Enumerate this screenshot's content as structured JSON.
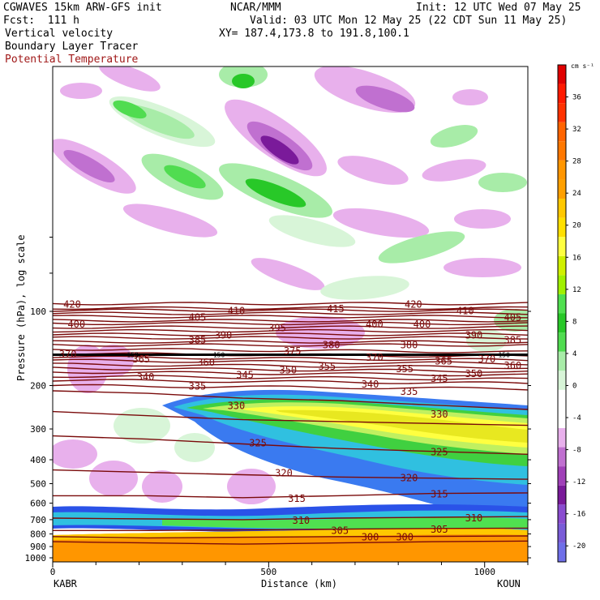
{
  "header": {
    "model": "CGWAVES 15km ARW-GFS init",
    "fcst": "Fcst:  111 h",
    "source": "NCAR/MMM",
    "init": "Init: 12 UTC Wed 07 May 25",
    "valid": "Valid: 03 UTC Mon 12 May 25 (22 CDT Sun 11 May 25)",
    "xy": "XY= 187.4,173.8 to 191.8,100.1",
    "field1": "Vertical velocity",
    "field2": "Boundary Layer Tracer",
    "field3": "Potential Temperature"
  },
  "colors": {
    "theta_contour": "#7a0a0a",
    "shading": [
      "#6f6fe8",
      "#8a4cd0",
      "#7a1a9a",
      "#a040b8",
      "#c070d0",
      "#e8b0ec",
      "#ffffff",
      "#d8f5d8",
      "#a8eca8",
      "#50dc50",
      "#28c828",
      "#50e050",
      "#d0f000",
      "#ffff40",
      "#ffc800",
      "#ff9600",
      "#ff6400",
      "#ff3200",
      "#e00000"
    ]
  },
  "chart_data": {
    "type": "heatmap",
    "title": "",
    "xlabel": "Distance (km)",
    "ylabel": "Pressure (hPa), log scale",
    "x_endpoints": {
      "left": "KABR",
      "right": "KOUN"
    },
    "x_ticks": [
      0,
      500,
      1000
    ],
    "xlim": [
      0,
      1100
    ],
    "y_ticks": [
      100,
      200,
      300,
      400,
      500,
      600,
      700,
      800,
      900,
      1000
    ],
    "y_scale": "log",
    "colorbar": {
      "unit": "cm s⁻¹",
      "tick_labels": [
        "36",
        "32",
        "28",
        "24",
        "20",
        "16",
        "12",
        "8",
        "4",
        "0",
        "-4",
        "-8",
        "-12",
        "-16",
        "-20"
      ],
      "min": -22,
      "max": 40
    },
    "theta_labels": [
      {
        "text": "420",
        "x": 45,
        "p": 93
      },
      {
        "text": "420",
        "x": 835,
        "p": 93
      },
      {
        "text": "415",
        "x": 655,
        "p": 97
      },
      {
        "text": "410",
        "x": 425,
        "p": 99
      },
      {
        "text": "410",
        "x": 955,
        "p": 99
      },
      {
        "text": "405",
        "x": 335,
        "p": 105
      },
      {
        "text": "405",
        "x": 1065,
        "p": 105
      },
      {
        "text": "400",
        "x": 55,
        "p": 112
      },
      {
        "text": "400",
        "x": 745,
        "p": 112
      },
      {
        "text": "400",
        "x": 855,
        "p": 112
      },
      {
        "text": "395",
        "x": 520,
        "p": 116
      },
      {
        "text": "390",
        "x": 395,
        "p": 124
      },
      {
        "text": "390",
        "x": 975,
        "p": 124
      },
      {
        "text": "385",
        "x": 335,
        "p": 130
      },
      {
        "text": "385",
        "x": 1065,
        "p": 130
      },
      {
        "text": "380",
        "x": 645,
        "p": 136
      },
      {
        "text": "380",
        "x": 825,
        "p": 136
      },
      {
        "text": "375",
        "x": 555,
        "p": 144
      },
      {
        "text": "370",
        "x": 35,
        "p": 148
      },
      {
        "text": "370",
        "x": 745,
        "p": 153
      },
      {
        "text": "370",
        "x": 1005,
        "p": 155
      },
      {
        "text": "365",
        "x": 205,
        "p": 155
      },
      {
        "text": "365",
        "x": 905,
        "p": 158
      },
      {
        "text": "360",
        "x": 355,
        "p": 160
      },
      {
        "text": "360",
        "x": 1065,
        "p": 165
      },
      {
        "text": "355",
        "x": 635,
        "p": 166
      },
      {
        "text": "355",
        "x": 815,
        "p": 170
      },
      {
        "text": "350",
        "x": 545,
        "p": 172
      },
      {
        "text": "350",
        "x": 975,
        "p": 178
      },
      {
        "text": "345",
        "x": 445,
        "p": 180
      },
      {
        "text": "345",
        "x": 895,
        "p": 186
      },
      {
        "text": "340",
        "x": 215,
        "p": 183
      },
      {
        "text": "340",
        "x": 735,
        "p": 196
      },
      {
        "text": "335",
        "x": 335,
        "p": 200
      },
      {
        "text": "335",
        "x": 825,
        "p": 210
      },
      {
        "text": "330",
        "x": 425,
        "p": 240
      },
      {
        "text": "330",
        "x": 895,
        "p": 260
      },
      {
        "text": "325",
        "x": 475,
        "p": 340
      },
      {
        "text": "325",
        "x": 895,
        "p": 370
      },
      {
        "text": "320",
        "x": 535,
        "p": 450
      },
      {
        "text": "320",
        "x": 825,
        "p": 470
      },
      {
        "text": "315",
        "x": 565,
        "p": 570
      },
      {
        "text": "315",
        "x": 895,
        "p": 548
      },
      {
        "text": "310",
        "x": 575,
        "p": 700
      },
      {
        "text": "310",
        "x": 975,
        "p": 685
      },
      {
        "text": "305",
        "x": 665,
        "p": 770
      },
      {
        "text": "305",
        "x": 895,
        "p": 760
      },
      {
        "text": "300",
        "x": 735,
        "p": 818
      },
      {
        "text": "300",
        "x": 815,
        "p": 818
      },
      {
        "text": "150",
        "x": 185,
        "p": 150
      },
      {
        "text": "150",
        "x": 385,
        "p": 150
      },
      {
        "text": "150",
        "x": 1045,
        "p": 150
      }
    ]
  }
}
